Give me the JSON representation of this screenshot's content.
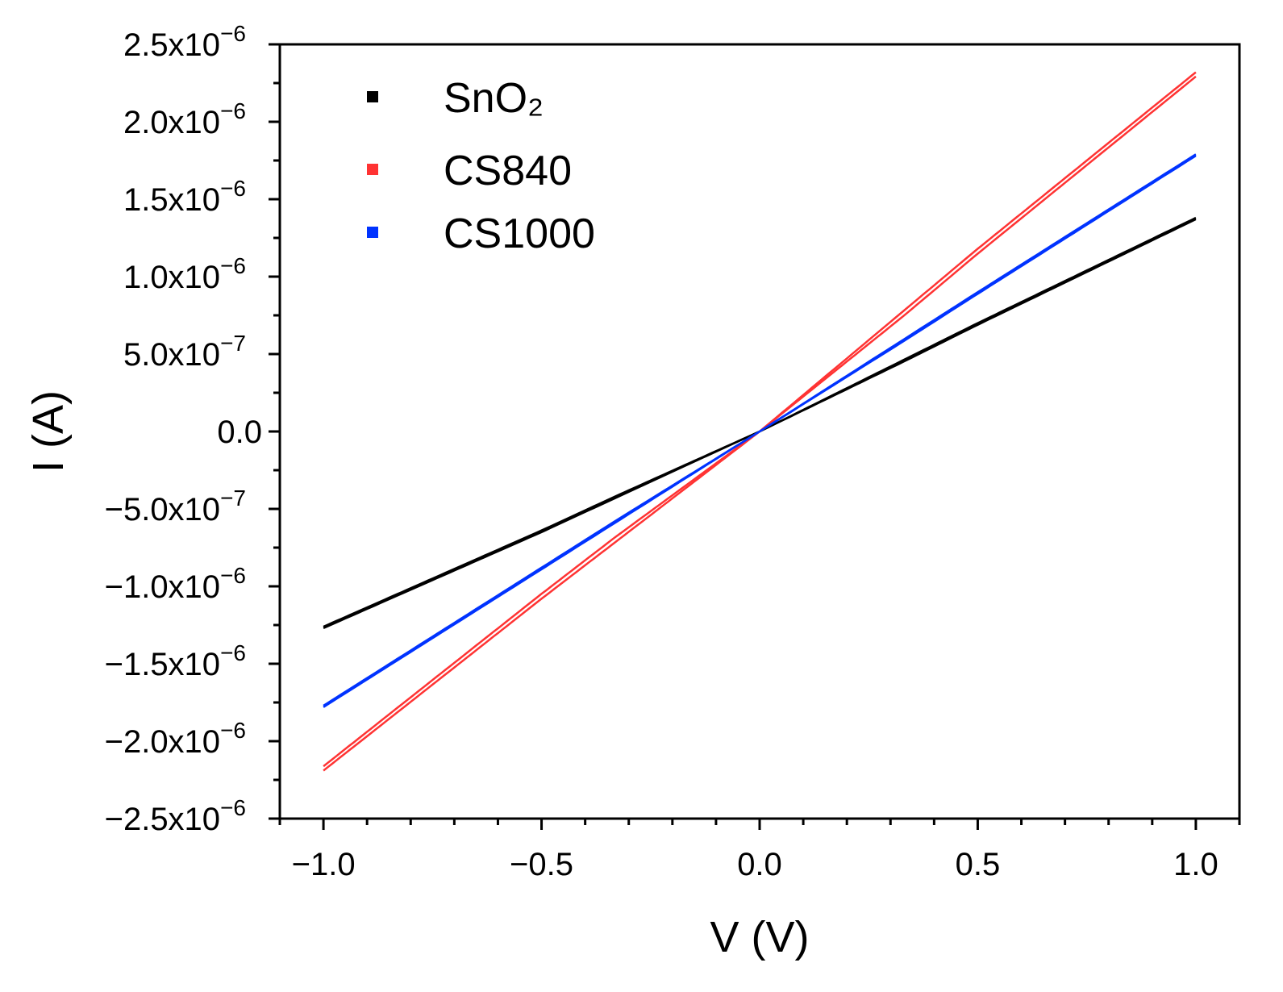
{
  "chart_data": {
    "type": "line",
    "title": "",
    "xlabel": "V (V)",
    "ylabel": "I (A)",
    "xlim": [
      -1.1,
      1.1
    ],
    "ylim": [
      -2.5e-06,
      2.5e-06
    ],
    "grid": false,
    "legend_position": "top-left",
    "x_ticks": [
      {
        "value": -1.0,
        "label": "−1.0"
      },
      {
        "value": -0.5,
        "label": "−0.5"
      },
      {
        "value": 0.0,
        "label": "0.0"
      },
      {
        "value": 0.5,
        "label": "0.5"
      },
      {
        "value": 1.0,
        "label": "1.0"
      }
    ],
    "y_ticks": [
      {
        "value": 2.5e-06,
        "mantissa": "2.5x10",
        "exp": "−6"
      },
      {
        "value": 2e-06,
        "mantissa": "2.0x10",
        "exp": "−6"
      },
      {
        "value": 1.5e-06,
        "mantissa": "1.5x10",
        "exp": "−6"
      },
      {
        "value": 1e-06,
        "mantissa": "1.0x10",
        "exp": "−6"
      },
      {
        "value": 5e-07,
        "mantissa": "5.0x10",
        "exp": "−7"
      },
      {
        "value": 0,
        "mantissa": "0.0",
        "exp": ""
      },
      {
        "value": -5e-07,
        "mantissa": "−5.0x10",
        "exp": "−7"
      },
      {
        "value": -1e-06,
        "mantissa": "−1.0x10",
        "exp": "−6"
      },
      {
        "value": -1.5e-06,
        "mantissa": "−1.5x10",
        "exp": "−6"
      },
      {
        "value": -2e-06,
        "mantissa": "−2.0x10",
        "exp": "−6"
      },
      {
        "value": -2.5e-06,
        "mantissa": "−2.5x10",
        "exp": "−6"
      }
    ],
    "x": [
      -1.0,
      -0.5,
      0.0,
      0.5,
      1.0
    ],
    "series": [
      {
        "name": "SnO₂",
        "color": "#000000",
        "values": [
          -1.27e-06,
          -6.5e-07,
          0,
          7e-07,
          1.38e-06
        ]
      },
      {
        "name": "CS840",
        "color": "#ff3333",
        "values": [
          -2.19e-06,
          -1.08e-06,
          0,
          1.18e-06,
          2.32e-06
        ]
      },
      {
        "name": "CS1000",
        "color": "#0033ff",
        "values": [
          -1.78e-06,
          -8.9e-07,
          0,
          9e-07,
          1.79e-06
        ]
      }
    ]
  }
}
